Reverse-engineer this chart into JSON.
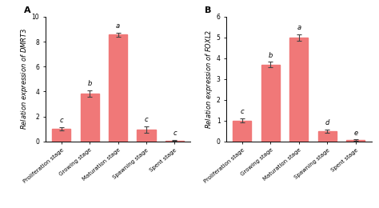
{
  "panel_A": {
    "title": "A",
    "ylabel": "Relation expression of $DMRT3$",
    "categories": [
      "Proliferation\nstage",
      "Growing\nstage",
      "Maturation\nstage",
      "Spawning\nstage",
      "Spent\nstage"
    ],
    "values": [
      1.0,
      3.85,
      8.55,
      0.95,
      0.08
    ],
    "errors": [
      0.12,
      0.25,
      0.15,
      0.25,
      0.03
    ],
    "letters": [
      "c",
      "b",
      "a",
      "c",
      "c"
    ],
    "ylim": [
      0,
      10
    ],
    "yticks": [
      0,
      2,
      4,
      6,
      8,
      10
    ],
    "bar_color": "#F07878",
    "bar_edge_color": "#F07878"
  },
  "panel_B": {
    "title": "B",
    "ylabel": "Relation expression of $FOXL2$",
    "categories": [
      "Proliferation\nstage",
      "Growing\nstage",
      "Maturation\nstage",
      "Spawning\nstage",
      "Spent\nstage"
    ],
    "values": [
      1.0,
      3.7,
      5.0,
      0.48,
      0.07
    ],
    "errors": [
      0.1,
      0.12,
      0.15,
      0.08,
      0.02
    ],
    "letters": [
      "c",
      "b",
      "a",
      "d",
      "e"
    ],
    "ylim": [
      0,
      6
    ],
    "yticks": [
      0,
      1,
      2,
      3,
      4,
      5,
      6
    ],
    "bar_color": "#F07878",
    "bar_edge_color": "#F07878"
  },
  "background_color": "#ffffff",
  "tick_label_fontsize": 5.0,
  "letter_fontsize": 6.0,
  "ylabel_fontsize": 6.0,
  "title_fontsize": 8,
  "ytick_fontsize": 5.5
}
